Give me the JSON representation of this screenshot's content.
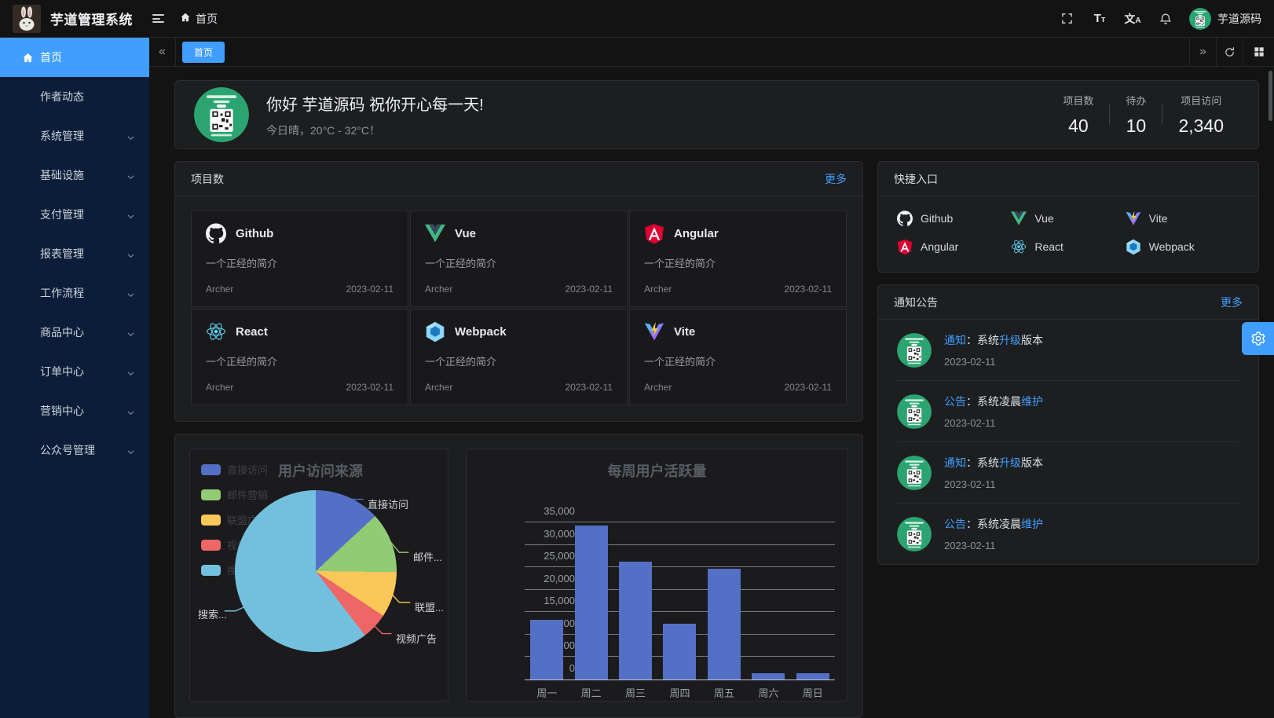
{
  "app": {
    "title": "芋道管理系统",
    "accent_color": "#409eff",
    "sidebar_color": "#0b1d38"
  },
  "navbar": {
    "breadcrumb": "首页",
    "user_name": "芋道源码",
    "icons": [
      "menu-fold-icon",
      "fullscreen-icon",
      "font-size-icon",
      "locale-icon",
      "bell-icon"
    ]
  },
  "sidebar": {
    "items": [
      {
        "label": "首页",
        "icon": "home-icon",
        "active": true,
        "expandable": false
      },
      {
        "label": "作者动态",
        "active": false,
        "expandable": false
      },
      {
        "label": "系统管理",
        "active": false,
        "expandable": true
      },
      {
        "label": "基础设施",
        "active": false,
        "expandable": true
      },
      {
        "label": "支付管理",
        "active": false,
        "expandable": true
      },
      {
        "label": "报表管理",
        "active": false,
        "expandable": true
      },
      {
        "label": "工作流程",
        "active": false,
        "expandable": true
      },
      {
        "label": "商品中心",
        "active": false,
        "expandable": true
      },
      {
        "label": "订单中心",
        "active": false,
        "expandable": true
      },
      {
        "label": "营销中心",
        "active": false,
        "expandable": true
      },
      {
        "label": "公众号管理",
        "active": false,
        "expandable": true
      }
    ]
  },
  "tabbar": {
    "tabs": [
      {
        "label": "首页",
        "active": true
      }
    ]
  },
  "welcome": {
    "greeting": "你好 芋道源码 祝你开心每一天!",
    "weather": "今日晴，20°C - 32°C！",
    "stats": [
      {
        "label": "项目数",
        "value": "40"
      },
      {
        "label": "待办",
        "value": "10"
      },
      {
        "label": "项目访问",
        "value": "2,340"
      }
    ]
  },
  "projects": {
    "title": "项目数",
    "more": "更多",
    "items": [
      {
        "name": "Github",
        "icon": "github-icon",
        "desc": "一个正经的简介",
        "author": "Archer",
        "date": "2023-02-11"
      },
      {
        "name": "Vue",
        "icon": "vue-icon",
        "desc": "一个正经的简介",
        "author": "Archer",
        "date": "2023-02-11"
      },
      {
        "name": "Angular",
        "icon": "angular-icon",
        "desc": "一个正经的简介",
        "author": "Archer",
        "date": "2023-02-11"
      },
      {
        "name": "React",
        "icon": "react-icon",
        "desc": "一个正经的简介",
        "author": "Archer",
        "date": "2023-02-11"
      },
      {
        "name": "Webpack",
        "icon": "webpack-icon",
        "desc": "一个正经的简介",
        "author": "Archer",
        "date": "2023-02-11"
      },
      {
        "name": "Vite",
        "icon": "vite-icon",
        "desc": "一个正经的简介",
        "author": "Archer",
        "date": "2023-02-11"
      }
    ]
  },
  "shortcuts": {
    "title": "快捷入口",
    "items": [
      {
        "name": "Github",
        "icon": "github-icon"
      },
      {
        "name": "Vue",
        "icon": "vue-icon"
      },
      {
        "name": "Vite",
        "icon": "vite-icon"
      },
      {
        "name": "Angular",
        "icon": "angular-icon"
      },
      {
        "name": "React",
        "icon": "react-icon"
      },
      {
        "name": "Webpack",
        "icon": "webpack-icon"
      }
    ]
  },
  "notices": {
    "title": "通知公告",
    "more": "更多",
    "items": [
      {
        "segments": [
          {
            "text": "通知",
            "highlight": true
          },
          {
            "text": "：系统",
            "highlight": false
          },
          {
            "text": "升级",
            "highlight": true
          },
          {
            "text": "版本",
            "highlight": false
          }
        ],
        "date": "2023-02-11"
      },
      {
        "segments": [
          {
            "text": "公告",
            "highlight": true
          },
          {
            "text": "：系统凌晨",
            "highlight": false
          },
          {
            "text": "维护",
            "highlight": true
          }
        ],
        "date": "2023-02-11"
      },
      {
        "segments": [
          {
            "text": "通知",
            "highlight": true
          },
          {
            "text": "：系统",
            "highlight": false
          },
          {
            "text": "升级",
            "highlight": true
          },
          {
            "text": "版本",
            "highlight": false
          }
        ],
        "date": "2023-02-11"
      },
      {
        "segments": [
          {
            "text": "公告",
            "highlight": true
          },
          {
            "text": "：系统凌晨",
            "highlight": false
          },
          {
            "text": "维护",
            "highlight": true
          }
        ],
        "date": "2023-02-11"
      }
    ]
  },
  "chart_data": [
    {
      "type": "pie",
      "title": "用户访问来源",
      "legend_position": "left",
      "series": [
        {
          "name": "直接访问",
          "share_pct": 13.1,
          "color": "#5470c6",
          "callout": "直接访问"
        },
        {
          "name": "邮件营销",
          "share_pct": 12.1,
          "color": "#91cc75",
          "callout": "邮件..."
        },
        {
          "name": "联盟广告",
          "share_pct": 9.1,
          "color": "#fac858",
          "callout": "联盟..."
        },
        {
          "name": "视频广告",
          "share_pct": 5.3,
          "color": "#ee6666",
          "callout": "视频广告"
        },
        {
          "name": "搜索引擎",
          "share_pct": 60.4,
          "color": "#73c0de",
          "callout": "搜索..."
        }
      ]
    },
    {
      "type": "bar",
      "title": "每周用户活跃量",
      "categories": [
        "周一",
        "周二",
        "周三",
        "周四",
        "周五",
        "周六",
        "周日"
      ],
      "values": [
        13300,
        34300,
        26300,
        12500,
        24700,
        1400,
        1400
      ],
      "ylim": [
        0,
        35000
      ],
      "ytick_step": 5000,
      "bar_color": "#5470c6",
      "grid": true
    }
  ]
}
